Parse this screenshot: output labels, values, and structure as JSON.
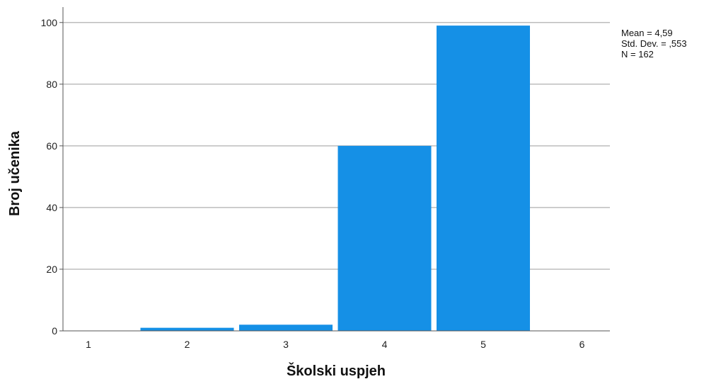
{
  "chart_data": {
    "type": "bar",
    "title": "",
    "xlabel": "Školski uspjeh",
    "ylabel": "Broj učenika",
    "categories": [
      "1",
      "2",
      "3",
      "4",
      "5",
      "6"
    ],
    "values": [
      0,
      1,
      2,
      60,
      99,
      0
    ],
    "yticks": [
      "0",
      "20",
      "40",
      "60",
      "80",
      "100"
    ],
    "ylim": [
      0,
      105
    ],
    "grid": true,
    "bar_color": "#1590e6",
    "faded_category_color": "#999999",
    "stats": {
      "mean": "Mean = 4,59",
      "std": "Std. Dev. = ,553",
      "n": "N = 162"
    }
  }
}
